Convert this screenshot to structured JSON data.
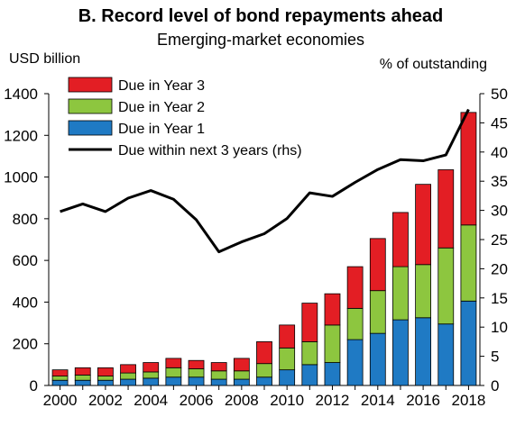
{
  "chart_data": {
    "type": "bar",
    "title": "B. Record level of bond repayments ahead",
    "subtitle": "Emerging-market economies",
    "ylabel_left": "USD billion",
    "ylabel_right": "% of outstanding",
    "ylim_left": [
      0,
      1400
    ],
    "ylim_right": [
      0,
      50
    ],
    "yticks_left": [
      "0",
      "200",
      "400",
      "600",
      "800",
      "1000",
      "1200",
      "1400"
    ],
    "yticks_right": [
      "0",
      "5",
      "10",
      "15",
      "20",
      "25",
      "30",
      "35",
      "40",
      "45",
      "50"
    ],
    "categories": [
      "2000",
      "2001",
      "2002",
      "2003",
      "2004",
      "2005",
      "2006",
      "2007",
      "2008",
      "2009",
      "2010",
      "2011",
      "2012",
      "2013",
      "2014",
      "2015",
      "2016",
      "2017",
      "2018"
    ],
    "x_tick_labels": [
      "2000",
      "2002",
      "2004",
      "2006",
      "2008",
      "2010",
      "2012",
      "2014",
      "2016",
      "2018"
    ],
    "stacked": true,
    "series": [
      {
        "name": "Due in Year 1",
        "color": "#1f7ac4",
        "axis": "left",
        "values": [
          25,
          25,
          25,
          30,
          35,
          40,
          40,
          30,
          30,
          40,
          75,
          100,
          110,
          220,
          250,
          315,
          325,
          295,
          405
        ]
      },
      {
        "name": "Due in Year 2",
        "color": "#8dc63f",
        "axis": "left",
        "values": [
          20,
          25,
          20,
          30,
          30,
          45,
          40,
          40,
          40,
          65,
          105,
          110,
          180,
          150,
          205,
          255,
          255,
          365,
          365
        ]
      },
      {
        "name": "Due in Year 3",
        "color": "#e31e24",
        "axis": "left",
        "values": [
          30,
          35,
          40,
          40,
          45,
          45,
          40,
          40,
          60,
          105,
          110,
          185,
          150,
          200,
          250,
          260,
          385,
          375,
          540
        ]
      },
      {
        "name": "Due within next 3 years (rhs)",
        "color": "#000000",
        "axis": "right",
        "type": "line",
        "values": [
          29.8,
          31.1,
          29.8,
          32.1,
          33.4,
          31.9,
          28.4,
          22.9,
          24.6,
          26.0,
          28.6,
          33.0,
          32.4,
          34.8,
          37.0,
          38.7,
          38.5,
          39.5,
          47.3
        ]
      }
    ],
    "legend": {
      "placement": "top-left",
      "order": [
        "Due in Year 3",
        "Due in Year 2",
        "Due in Year 1",
        "Due within next 3 years (rhs)"
      ]
    },
    "grid": false
  }
}
